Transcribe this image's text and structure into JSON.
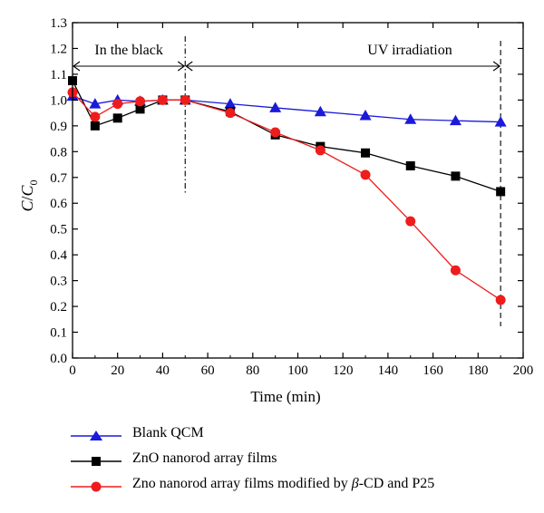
{
  "chart_data": {
    "type": "line",
    "xlabel": "Time (min)",
    "ylabel_main": "C",
    "ylabel_slash": "/",
    "ylabel_sub_main": "C",
    "ylabel_sub": "0",
    "xlim": [
      0,
      200
    ],
    "ylim": [
      0.0,
      1.3
    ],
    "xticks": [
      0,
      20,
      40,
      60,
      80,
      100,
      120,
      140,
      160,
      180,
      200
    ],
    "yticks": [
      "0.0",
      "0.1",
      "0.2",
      "0.3",
      "0.4",
      "0.5",
      "0.6",
      "0.7",
      "0.8",
      "0.9",
      "1.0",
      "1.1",
      "1.2",
      "1.3"
    ],
    "annotations": {
      "dark": {
        "text": "In the black",
        "x_start": 0,
        "x_end": 50
      },
      "uv": {
        "text": "UV irradiation",
        "x_start": 50,
        "x_end": 190
      },
      "separators": [
        50,
        190
      ]
    },
    "series": [
      {
        "name": "Blank QCM",
        "color": "#1a1adb",
        "marker": "triangle",
        "x": [
          0,
          10,
          20,
          30,
          40,
          50,
          70,
          90,
          110,
          130,
          150,
          170,
          190
        ],
        "y": [
          1.015,
          0.985,
          1.0,
          0.995,
          1.0,
          1.0,
          0.985,
          0.97,
          0.955,
          0.94,
          0.925,
          0.92,
          0.915
        ]
      },
      {
        "name": "ZnO nanorod array films",
        "color": "#000000",
        "marker": "square",
        "x": [
          0,
          10,
          20,
          30,
          40,
          50,
          70,
          90,
          110,
          130,
          150,
          170,
          190
        ],
        "y": [
          1.075,
          0.9,
          0.93,
          0.965,
          1.0,
          1.0,
          0.955,
          0.865,
          0.82,
          0.795,
          0.745,
          0.705,
          0.645
        ]
      },
      {
        "name": "Zno nanorod array films modified by β-CD and P25",
        "color": "#ee1c1c",
        "marker": "circle",
        "x": [
          0,
          10,
          20,
          30,
          40,
          50,
          70,
          90,
          110,
          130,
          150,
          170,
          190
        ],
        "y": [
          1.03,
          0.935,
          0.985,
          0.995,
          1.0,
          1.0,
          0.95,
          0.875,
          0.805,
          0.71,
          0.53,
          0.34,
          0.225
        ]
      }
    ]
  },
  "legend": {
    "items": [
      {
        "label": "Blank QCM"
      },
      {
        "label": "ZnO nanorod array films"
      },
      {
        "label_pre": "Zno nanorod array films modified by ",
        "label_beta": "β",
        "label_post": "-CD and P25"
      }
    ]
  }
}
